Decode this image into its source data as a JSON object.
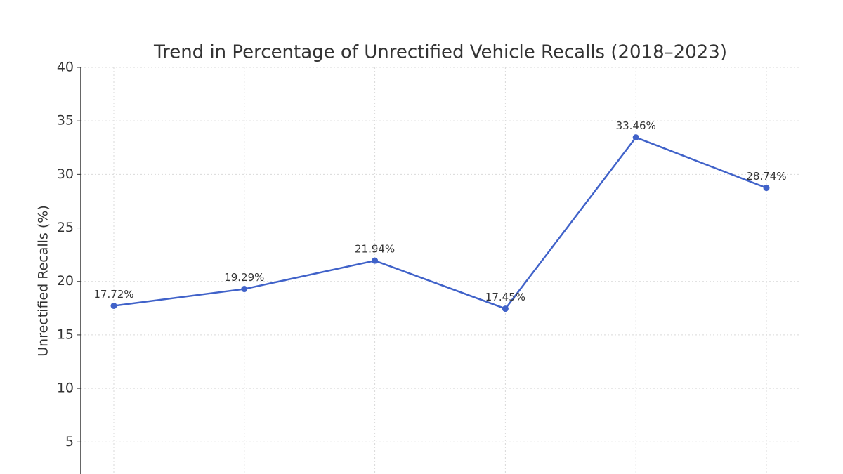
{
  "chart_data": {
    "type": "line",
    "title": "Trend in Percentage of Unrectified Vehicle Recalls (2018–2023)",
    "y_label": "Unrectified Recalls (%)",
    "categories": [
      null,
      null,
      null,
      null,
      null,
      null
    ],
    "values": [
      17.72,
      19.29,
      21.94,
      17.45,
      33.46,
      28.74
    ],
    "value_labels": [
      "17.72%",
      "19.29%",
      "21.94%",
      "17.45%",
      "33.46%",
      "28.74%"
    ],
    "color": "#4062c9",
    "ylim": [
      2,
      40
    ],
    "yticks": [
      5,
      10,
      15,
      20,
      25,
      30,
      35,
      40
    ],
    "grid": true
  }
}
